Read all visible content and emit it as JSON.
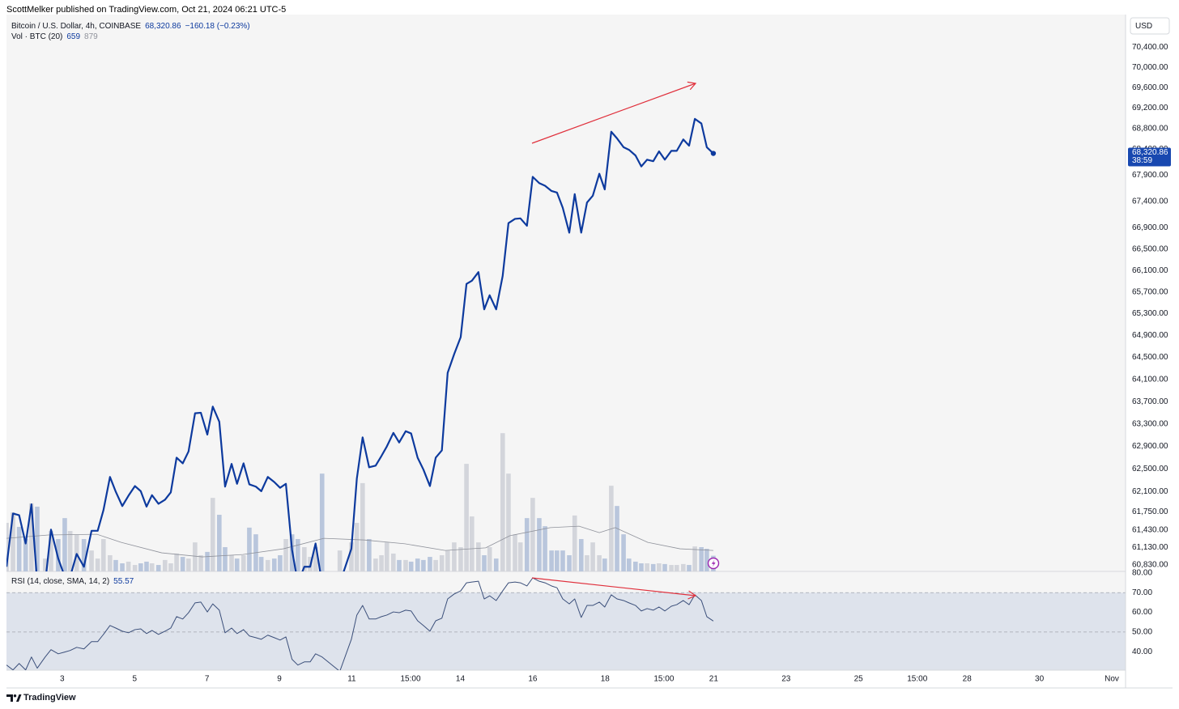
{
  "chart_data": {
    "type": "line",
    "title": "ScottMelker published on TradingView.com, Oct 21, 2024 06:21 UTC-5",
    "currency": "USD",
    "log": true,
    "grid": false,
    "x": [
      1.46,
      1.64,
      1.81,
      1.99,
      2.15,
      2.31,
      2.53,
      2.69,
      2.89,
      3.07,
      3.22,
      3.4,
      3.6,
      3.81,
      3.98,
      4.14,
      4.32,
      4.48,
      4.66,
      4.83,
      5.01,
      5.17,
      5.33,
      5.48,
      5.66,
      5.84,
      6.0,
      6.16,
      6.33,
      6.49,
      6.67,
      6.83,
      7.01,
      7.16,
      7.34,
      7.5,
      7.68,
      7.83,
      8.01,
      8.17,
      8.35,
      8.5,
      8.68,
      8.86,
      9.02,
      9.18,
      9.35,
      9.51,
      9.69,
      9.85,
      10.0,
      10.18,
      10.67,
      10.99,
      11.14,
      11.3,
      11.48,
      11.66,
      11.82,
      11.97,
      12.15,
      12.31,
      12.49,
      12.64,
      12.82,
      12.98,
      13.16,
      13.32,
      13.49,
      13.65,
      13.83,
      14.01,
      14.17,
      14.32,
      14.5,
      14.66,
      14.81,
      14.99,
      15.17,
      15.33,
      15.51,
      15.66,
      15.84,
      16.0,
      16.18,
      16.34,
      16.52,
      16.67,
      16.83,
      17.01,
      17.16,
      17.34,
      17.5,
      17.66,
      17.84,
      17.99,
      18.17,
      18.33,
      18.51,
      18.66,
      18.84,
      19.0,
      19.16,
      19.33,
      19.49,
      19.65,
      19.83,
      19.98,
      20.16,
      20.32,
      20.48,
      20.66,
      20.81,
      20.99
    ],
    "xlim": [
      1.46,
      32.38
    ],
    "xticks": [
      3,
      5,
      7,
      9,
      11,
      {
        "value": 12.625,
        "label": "15:00"
      },
      14,
      16,
      18,
      {
        "value": 19.625,
        "label": "15:00"
      },
      21,
      23,
      25,
      {
        "value": 26.625,
        "label": "15:00"
      },
      28,
      30,
      {
        "value": 32,
        "label": "Nov"
      }
    ],
    "ylim": [
      60720,
      71050
    ],
    "yticks": [
      {
        "value": 60830,
        "label": "60,830.00"
      },
      {
        "value": 61130,
        "label": "61,130.00"
      },
      {
        "value": 61430,
        "label": "61,430.00"
      },
      {
        "value": 61750,
        "label": "61,750.00"
      },
      {
        "value": 62100,
        "label": "62,100.00"
      },
      {
        "value": 62500,
        "label": "62,500.00"
      },
      {
        "value": 62900,
        "label": "62,900.00"
      },
      {
        "value": 63300,
        "label": "63,300.00"
      },
      {
        "value": 63700,
        "label": "63,700.00"
      },
      {
        "value": 64100,
        "label": "64,100.00"
      },
      {
        "value": 64500,
        "label": "64,500.00"
      },
      {
        "value": 64900,
        "label": "64,900.00"
      },
      {
        "value": 65300,
        "label": "65,300.00"
      },
      {
        "value": 65700,
        "label": "65,700.00"
      },
      {
        "value": 66100,
        "label": "66,100.00"
      },
      {
        "value": 66500,
        "label": "66,500.00"
      },
      {
        "value": 66900,
        "label": "66,900.00"
      },
      {
        "value": 67400,
        "label": "67,400.00"
      },
      {
        "value": 67900,
        "label": "67,900.00"
      },
      {
        "value": 68400,
        "label": "68,400.00"
      },
      {
        "value": 68800,
        "label": "68,800.00"
      },
      {
        "value": 69200,
        "label": "69,200.00"
      },
      {
        "value": 69600,
        "label": "69,600.00"
      },
      {
        "value": 70000,
        "label": "70,000.00"
      },
      {
        "value": 70400,
        "label": "70,400.00"
      }
    ],
    "y2lim": [
      0,
      23400
    ],
    "series": [
      {
        "name": "Bitcoin / U.S. Dollar, 4h, COINBASE",
        "color": "#0d3a9e",
        "last_label": "68,320.86",
        "change": "−160.18 (−0.23%)",
        "countdown": "38:59",
        "values": [
          60800,
          61720,
          61690,
          61200,
          61880,
          60520,
          60520,
          61440,
          60940,
          60630,
          60630,
          61020,
          60800,
          61420,
          61420,
          61780,
          62360,
          62100,
          61850,
          62030,
          62200,
          62110,
          61840,
          62040,
          61890,
          61960,
          62090,
          62700,
          62600,
          62810,
          63490,
          63500,
          63110,
          63610,
          63340,
          62190,
          62590,
          62240,
          62600,
          62230,
          62190,
          62110,
          62360,
          62270,
          62170,
          62240,
          61090,
          60520,
          60800,
          60800,
          61200,
          60520,
          60520,
          61110,
          62330,
          63060,
          62530,
          62560,
          62730,
          62900,
          63140,
          62970,
          63170,
          63130,
          62700,
          62490,
          62200,
          62700,
          62830,
          64220,
          64560,
          64870,
          65850,
          65910,
          66070,
          65380,
          65640,
          65380,
          66000,
          66990,
          67070,
          67080,
          66940,
          67870,
          67750,
          67700,
          67600,
          67570,
          67280,
          66810,
          67540,
          66810,
          67380,
          67510,
          67930,
          67630,
          68740,
          68610,
          68440,
          68390,
          68280,
          68070,
          68200,
          68170,
          68360,
          68200,
          68370,
          68370,
          68590,
          68470,
          68990,
          68900,
          68440,
          68320.86
        ]
      },
      {
        "name": "Vol · BTC (20)",
        "type": "bar",
        "axis": "y2",
        "up_color": "#d3d5db",
        "down_color": "#b9c6dc",
        "values": [
          2040,
          2480,
          1870,
          1360,
          2860,
          2720,
          540,
          1700,
          1360,
          2240,
          1700,
          1530,
          1360,
          880,
          540,
          1360,
          680,
          480,
          340,
          410,
          270,
          340,
          410,
          340,
          270,
          480,
          340,
          750,
          610,
          540,
          1220,
          680,
          820,
          3090,
          2380,
          1020,
          680,
          540,
          680,
          1840,
          1560,
          610,
          480,
          540,
          680,
          1360,
          1560,
          1360,
          1020,
          610,
          1020,
          4110,
          880,
          1220,
          2040,
          3710,
          1360,
          540,
          680,
          1220,
          750,
          480,
          480,
          410,
          540,
          480,
          610,
          480,
          680,
          880,
          1220,
          1020,
          4520,
          2310,
          1220,
          680,
          1020,
          540,
          5810,
          4110,
          1560,
          1220,
          2240,
          3090,
          2240,
          1900,
          880,
          880,
          880,
          680,
          2350,
          1360,
          680,
          1220,
          680,
          540,
          3600,
          2750,
          1560,
          540,
          410,
          340,
          340,
          310,
          340,
          310,
          270,
          270,
          310,
          270,
          1050,
          1020,
          950,
          659
        ]
      },
      {
        "type": "line",
        "axis": "y2",
        "color": "#8f929b",
        "x": [
          1.46,
          2.62,
          3.96,
          4.63,
          5.75,
          6.87,
          7.99,
          9.11,
          10.23,
          11.35,
          12.47,
          13.58,
          14.7,
          15.37,
          16.49,
          17.28,
          17.84,
          18.28,
          19.18,
          20.07,
          20.99
        ],
        "values": [
          1390,
          1530,
          1560,
          1220,
          780,
          610,
          710,
          950,
          1390,
          1320,
          1160,
          880,
          990,
          1500,
          1840,
          1900,
          1630,
          1840,
          1220,
          950,
          879
        ]
      }
    ],
    "rsi": {
      "name": "RSI (14, close, SMA, 14, 2)",
      "color": "#3b4f7a",
      "ylim": [
        30.6,
        80.8
      ],
      "yticks": [
        {
          "value": 40,
          "label": "40.00"
        },
        {
          "value": 50,
          "label": "50.00"
        },
        {
          "value": 60,
          "label": "60.00"
        },
        {
          "value": 70,
          "label": "70.00"
        },
        {
          "value": 80,
          "label": "80.00"
        }
      ],
      "band": [
        30,
        70
      ],
      "band_color": "#dee3ec",
      "levels": [
        70,
        50,
        30
      ],
      "values": [
        33.2,
        30.7,
        34.0,
        30.7,
        37.3,
        31.6,
        37.3,
        41.0,
        38.9,
        39.8,
        40.6,
        42.2,
        41.4,
        45.1,
        45.1,
        48.8,
        53.3,
        52.0,
        50.4,
        49.6,
        51.2,
        51.6,
        49.2,
        50.8,
        48.8,
        50.4,
        52.0,
        57.8,
        56.6,
        59.8,
        64.8,
        65.2,
        60.2,
        64.3,
        61.1,
        49.6,
        52.0,
        49.2,
        51.2,
        48.0,
        47.1,
        46.3,
        48.4,
        47.1,
        45.9,
        47.5,
        36.1,
        33.2,
        34.8,
        34.8,
        38.9,
        37.3,
        30.0,
        46.3,
        58.6,
        63.5,
        56.6,
        56.6,
        57.8,
        58.6,
        60.2,
        59.8,
        61.1,
        60.7,
        55.7,
        53.3,
        50.4,
        55.7,
        57.0,
        66.8,
        69.3,
        70.9,
        75.0,
        75.4,
        75.8,
        66.8,
        68.4,
        66.0,
        70.9,
        75.0,
        75.4,
        75.0,
        73.4,
        77.5,
        75.8,
        75.0,
        73.4,
        72.5,
        66.8,
        64.3,
        66.8,
        57.4,
        63.5,
        63.5,
        65.2,
        62.7,
        68.9,
        66.8,
        66.0,
        64.8,
        63.5,
        60.7,
        61.9,
        61.1,
        62.7,
        60.7,
        63.1,
        63.9,
        66.0,
        63.9,
        68.9,
        66.0,
        57.8,
        55.57
      ]
    }
  },
  "footer": {
    "brand": "TradingView"
  }
}
